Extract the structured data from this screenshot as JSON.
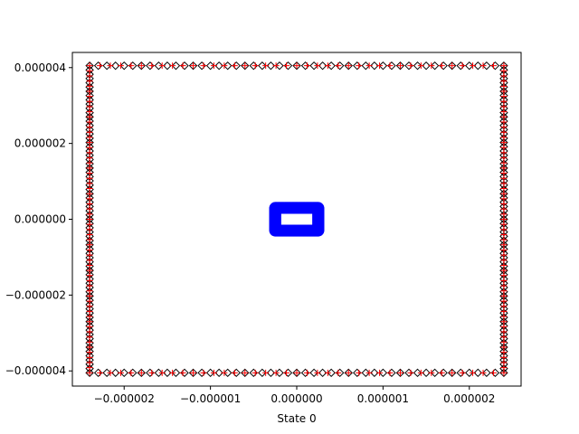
{
  "chart_data": {
    "type": "scatter",
    "title": "",
    "xlabel": "State 0",
    "ylabel": "",
    "xlim": [
      -2.6e-06,
      2.6e-06
    ],
    "ylim": [
      -4.4e-06,
      4.4e-06
    ],
    "grid": false,
    "xticks": [
      {
        "value": -2e-06,
        "label": "−0.000002"
      },
      {
        "value": -1e-06,
        "label": "−0.000001"
      },
      {
        "value": 0,
        "label": "0.000000"
      },
      {
        "value": 1e-06,
        "label": "0.000001"
      },
      {
        "value": 2e-06,
        "label": "0.000002"
      }
    ],
    "yticks": [
      {
        "value": -4e-06,
        "label": "−0.000004"
      },
      {
        "value": -2e-06,
        "label": "−0.000002"
      },
      {
        "value": 0,
        "label": "0.000000"
      },
      {
        "value": 2e-06,
        "label": "0.000002"
      },
      {
        "value": 4e-06,
        "label": "0.000004"
      }
    ],
    "series": [
      {
        "marker": "diamond",
        "color": "#000000",
        "shape": "rectangle-outline",
        "x_extent": [
          -2.4e-06,
          2.4e-06
        ],
        "y_extent": [
          -4.05e-06,
          4.05e-06
        ],
        "points_per_side_x": 48,
        "points_per_side_y": 72
      },
      {
        "marker": "plus",
        "color": "#ff0000",
        "shape": "rectangle-outline",
        "x_extent": [
          -2.4e-06,
          2.4e-06
        ],
        "y_extent": [
          -4.05e-06,
          4.05e-06
        ],
        "points_per_side_x": 40,
        "points_per_side_y": 60
      },
      {
        "marker": "circle",
        "color": "#0000ff",
        "shape": "rectangle-outline",
        "x_extent": [
          -2.5e-07,
          2.5e-07
        ],
        "y_extent": [
          -3e-07,
          3e-07
        ],
        "points_per_side_x": 60,
        "points_per_side_y": 60
      }
    ]
  }
}
